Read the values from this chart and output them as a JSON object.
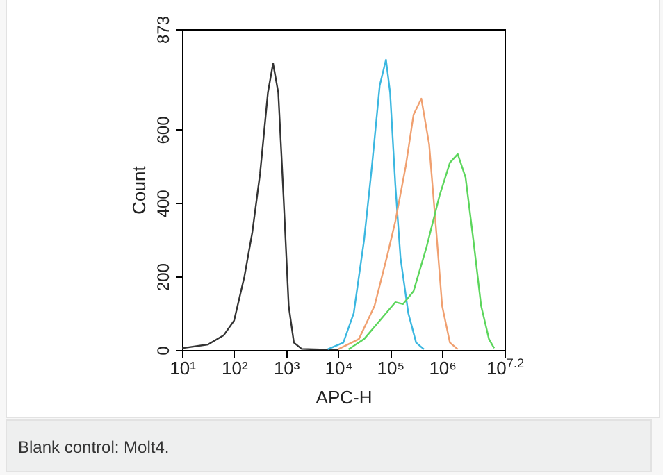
{
  "chart_data": {
    "type": "line",
    "xlabel": "APC-H",
    "ylabel": "Count",
    "log": "x",
    "xlim": [
      10,
      15848932
    ],
    "xticks": [
      {
        "value": 10,
        "label": "10¹"
      },
      {
        "value": 100,
        "label": "10²"
      },
      {
        "value": 1000,
        "label": "10³"
      },
      {
        "value": 10000,
        "label": "10⁴"
      },
      {
        "value": 100000,
        "label": "10⁵"
      },
      {
        "value": 1000000,
        "label": "10⁶"
      },
      {
        "value": 15848932,
        "label": "10$^{7.2}$"
      }
    ],
    "ylim": [
      0,
      873
    ],
    "yticks": [
      0,
      200,
      400,
      600,
      873
    ],
    "grid": false,
    "marker": "none",
    "line_style": "solid",
    "series": [
      {
        "color": "#333333",
        "x": [
          10,
          31.6,
          63.1,
          100,
          158,
          224,
          316,
          447,
          562,
          708,
          891,
          1122,
          1413,
          1995,
          10000
        ],
        "values": [
          5,
          15,
          40,
          80,
          200,
          320,
          480,
          700,
          780,
          700,
          420,
          120,
          20,
          3,
          0
        ]
      },
      {
        "color": "#3bb7e0",
        "x": [
          6310,
          12589,
          19953,
          31623,
          44668,
          63096,
          83176,
          100000,
          125893,
          158489,
          223872,
          316228,
          446684
        ],
        "values": [
          2,
          20,
          100,
          300,
          500,
          720,
          790,
          700,
          450,
          250,
          100,
          20,
          2
        ]
      },
      {
        "color": "#f0a070",
        "x": [
          10000,
          25119,
          50119,
          89125,
          125893,
          199526,
          281838,
          398107,
          562341,
          794328,
          1000000,
          1412538,
          1995262
        ],
        "values": [
          2,
          30,
          120,
          260,
          350,
          500,
          640,
          684,
          560,
          300,
          120,
          20,
          2
        ]
      },
      {
        "color": "#5cd65c",
        "x": [
          15849,
          31623,
          63096,
          125893,
          177828,
          281838,
          501187,
          891251,
          1412538,
          1995262,
          2818383,
          3981072,
          5623413,
          7943282,
          10000000
        ],
        "values": [
          2,
          30,
          80,
          130,
          125,
          160,
          280,
          420,
          510,
          533,
          470,
          300,
          120,
          30,
          5
        ]
      }
    ],
    "annotations": [
      "Blank control: Molt4."
    ]
  }
}
